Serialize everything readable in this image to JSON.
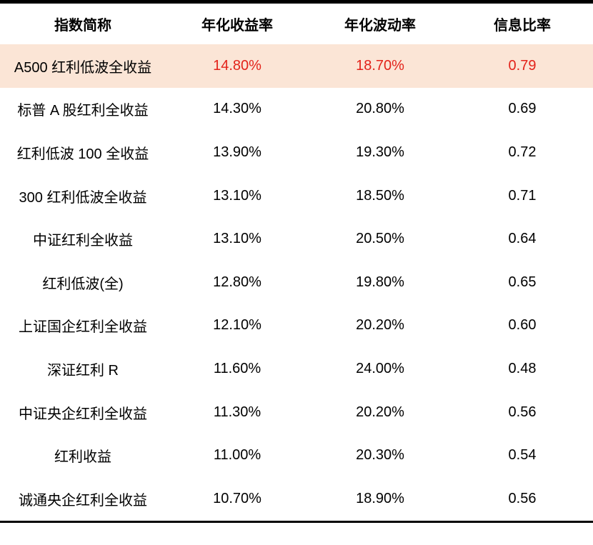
{
  "table": {
    "columns": [
      {
        "label": "指数简称"
      },
      {
        "label": "年化收益率"
      },
      {
        "label": "年化波动率"
      },
      {
        "label": "信息比率"
      }
    ],
    "rows": [
      {
        "name": "A500 红利低波全收益",
        "ret": "14.80%",
        "vol": "18.70%",
        "ir": "0.79",
        "highlight": true
      },
      {
        "name": "标普 A 股红利全收益",
        "ret": "14.30%",
        "vol": "20.80%",
        "ir": "0.69",
        "highlight": false
      },
      {
        "name": "红利低波 100 全收益",
        "ret": "13.90%",
        "vol": "19.30%",
        "ir": "0.72",
        "highlight": false
      },
      {
        "name": "300 红利低波全收益",
        "ret": "13.10%",
        "vol": "18.50%",
        "ir": "0.71",
        "highlight": false
      },
      {
        "name": "中证红利全收益",
        "ret": "13.10%",
        "vol": "20.50%",
        "ir": "0.64",
        "highlight": false
      },
      {
        "name": "红利低波(全)",
        "ret": "12.80%",
        "vol": "19.80%",
        "ir": "0.65",
        "highlight": false
      },
      {
        "name": "上证国企红利全收益",
        "ret": "12.10%",
        "vol": "20.20%",
        "ir": "0.60",
        "highlight": false
      },
      {
        "name": "深证红利 R",
        "ret": "11.60%",
        "vol": "24.00%",
        "ir": "0.48",
        "highlight": false
      },
      {
        "name": "中证央企红利全收益",
        "ret": "11.30%",
        "vol": "20.20%",
        "ir": "0.56",
        "highlight": false
      },
      {
        "name": "红利收益",
        "ret": "11.00%",
        "vol": "20.30%",
        "ir": "0.54",
        "highlight": false
      },
      {
        "name": "诚通央企红利全收益",
        "ret": "10.70%",
        "vol": "18.90%",
        "ir": "0.56",
        "highlight": false
      }
    ]
  },
  "colors": {
    "highlight_bg": "#fbe5d6",
    "highlight_number_text": "#e3231a",
    "text": "#000000",
    "border": "#000000"
  },
  "chart_data": {
    "type": "table",
    "title": "",
    "columns": [
      "指数简称",
      "年化收益率",
      "年化波动率",
      "信息比率"
    ],
    "series": [
      {
        "name": "年化收益率",
        "values": [
          14.8,
          14.3,
          13.9,
          13.1,
          13.1,
          12.8,
          12.1,
          11.6,
          11.3,
          11.0,
          10.7
        ]
      },
      {
        "name": "年化波动率",
        "values": [
          18.7,
          20.8,
          19.3,
          18.5,
          20.5,
          19.8,
          20.2,
          24.0,
          20.2,
          20.3,
          18.9
        ]
      },
      {
        "name": "信息比率",
        "values": [
          0.79,
          0.69,
          0.72,
          0.71,
          0.64,
          0.65,
          0.6,
          0.48,
          0.56,
          0.54,
          0.56
        ]
      }
    ],
    "categories": [
      "A500 红利低波全收益",
      "标普 A 股红利全收益",
      "红利低波 100 全收益",
      "300 红利低波全收益",
      "中证红利全收益",
      "红利低波(全)",
      "上证国企红利全收益",
      "深证红利 R",
      "中证央企红利全收益",
      "红利收益",
      "诚通央企红利全收益"
    ],
    "highlighted_category": "A500 红利低波全收益",
    "legend_position": "none",
    "grid": false
  }
}
